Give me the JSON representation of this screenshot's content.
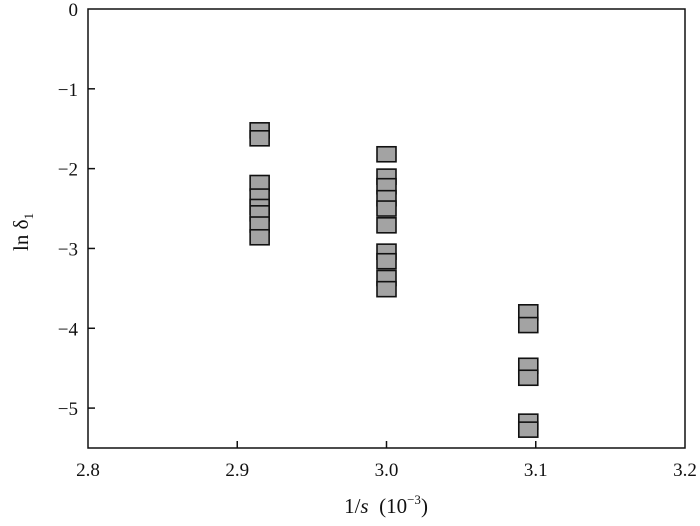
{
  "chart_data": {
    "type": "scatter",
    "xlabel": {
      "main": "1/",
      "var": "s",
      "unit_open": "  (10",
      "unit_exp": "−3",
      "unit_close": ")"
    },
    "ylabel": {
      "main": "ln δ",
      "sub": "1"
    },
    "xlim": [
      2.8,
      3.2
    ],
    "ylim": [
      -5.5,
      0
    ],
    "x_ticks": [
      {
        "value": 2.8,
        "label": "2.8"
      },
      {
        "value": 2.9,
        "label": "2.9"
      },
      {
        "value": 3.0,
        "label": "3.0"
      },
      {
        "value": 3.1,
        "label": "3.1"
      },
      {
        "value": 3.2,
        "label": "3.2"
      }
    ],
    "y_ticks": [
      {
        "value": 0,
        "label": "0"
      },
      {
        "value": -1,
        "label": "−1"
      },
      {
        "value": -2,
        "label": "−2"
      },
      {
        "value": -3,
        "label": "−3"
      },
      {
        "value": -4,
        "label": "−4"
      },
      {
        "value": -5,
        "label": "−5"
      }
    ],
    "grid": false,
    "marker": "square",
    "marker_color": "#a3a3a3",
    "series": [
      {
        "points": [
          {
            "x": 2.915,
            "y": -1.52
          },
          {
            "x": 2.915,
            "y": -1.62
          },
          {
            "x": 2.915,
            "y": -2.18
          },
          {
            "x": 2.915,
            "y": -2.35
          },
          {
            "x": 2.915,
            "y": -2.48
          },
          {
            "x": 2.915,
            "y": -2.56
          },
          {
            "x": 2.915,
            "y": -2.7
          },
          {
            "x": 2.915,
            "y": -2.86
          },
          {
            "x": 3.0,
            "y": -1.82
          },
          {
            "x": 3.0,
            "y": -2.1
          },
          {
            "x": 3.0,
            "y": -2.22
          },
          {
            "x": 3.0,
            "y": -2.37
          },
          {
            "x": 3.0,
            "y": -2.5
          },
          {
            "x": 3.0,
            "y": -2.71
          },
          {
            "x": 3.0,
            "y": -3.04
          },
          {
            "x": 3.0,
            "y": -3.16
          },
          {
            "x": 3.0,
            "y": -3.37
          },
          {
            "x": 3.0,
            "y": -3.51
          },
          {
            "x": 3.095,
            "y": -3.8
          },
          {
            "x": 3.095,
            "y": -3.96
          },
          {
            "x": 3.095,
            "y": -4.47
          },
          {
            "x": 3.095,
            "y": -4.62
          },
          {
            "x": 3.095,
            "y": -5.17
          },
          {
            "x": 3.095,
            "y": -5.27
          }
        ]
      }
    ]
  }
}
